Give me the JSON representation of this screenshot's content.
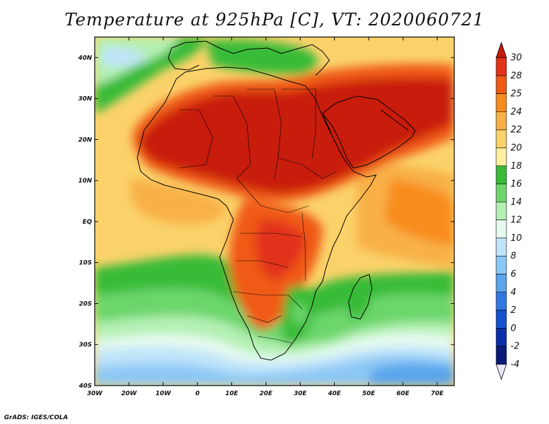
{
  "title": "Temperature at 925hPa [C], VT: 2020060721",
  "credit": "GrADS: IGES/COLA",
  "map": {
    "lon_range": [
      -30,
      75
    ],
    "lat_range": [
      -40,
      45
    ],
    "lon_ticks": [
      {
        "value": -30,
        "label": "30W"
      },
      {
        "value": -20,
        "label": "20W"
      },
      {
        "value": -10,
        "label": "10W"
      },
      {
        "value": 0,
        "label": "0"
      },
      {
        "value": 10,
        "label": "10E"
      },
      {
        "value": 20,
        "label": "20E"
      },
      {
        "value": 30,
        "label": "30E"
      },
      {
        "value": 40,
        "label": "40E"
      },
      {
        "value": 50,
        "label": "50E"
      },
      {
        "value": 60,
        "label": "60E"
      },
      {
        "value": 70,
        "label": "70E"
      }
    ],
    "lat_ticks": [
      {
        "value": 40,
        "label": "40N"
      },
      {
        "value": 30,
        "label": "30N"
      },
      {
        "value": 20,
        "label": "20N"
      },
      {
        "value": 10,
        "label": "10N"
      },
      {
        "value": 0,
        "label": "EQ"
      },
      {
        "value": -10,
        "label": "10S"
      },
      {
        "value": -20,
        "label": "20S"
      },
      {
        "value": -30,
        "label": "30S"
      },
      {
        "value": -40,
        "label": "40S"
      }
    ]
  },
  "colorbar": {
    "levels": [
      "30",
      "28",
      "25",
      "24",
      "22",
      "20",
      "18",
      "16",
      "14",
      "12",
      "10",
      "8",
      "6",
      "4",
      "2",
      "0",
      "-2",
      "-4"
    ],
    "colors": [
      "#c81a0a",
      "#e2321a",
      "#f05a14",
      "#f88c1e",
      "#f8b046",
      "#fbd26a",
      "#fff0a0",
      "#39bb37",
      "#6cd66c",
      "#b4f0b4",
      "#e6fbf0",
      "#c0e4fa",
      "#8cc8f5",
      "#5aa5ed",
      "#3278e1",
      "#1452cf",
      "#0a2fa8",
      "#091a78",
      "#e8e8fb"
    ]
  }
}
